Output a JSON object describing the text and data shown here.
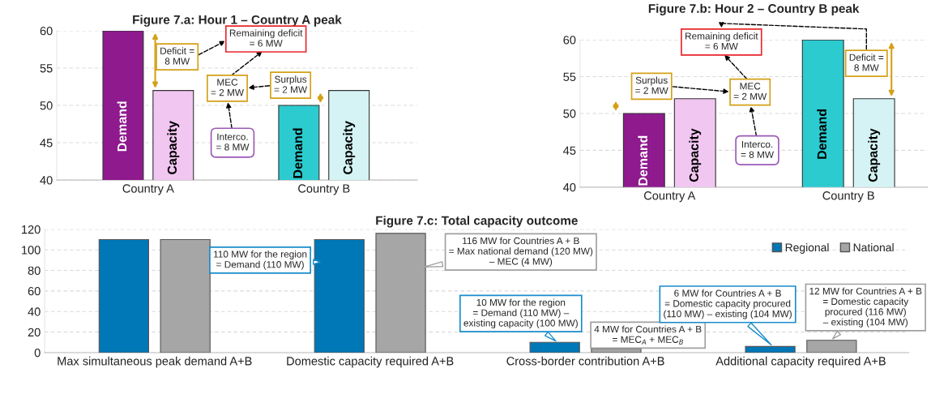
{
  "chart_data": [
    {
      "type": "bar",
      "title": "Figure 7.a: Hour 1 – Country A peak",
      "categories": [
        "Country A",
        "Country B"
      ],
      "series": [
        {
          "name": "Demand",
          "colors": [
            "#8e1a8e",
            "#2ccbd0"
          ],
          "values": [
            60,
            50
          ]
        },
        {
          "name": "Capacity",
          "colors": [
            "#f1c6f1",
            "#d5f3f4"
          ],
          "values": [
            52,
            52
          ]
        }
      ],
      "ylim": [
        40,
        60
      ],
      "yticks": [
        40,
        45,
        50,
        55,
        60
      ],
      "grid": "y",
      "legend": false,
      "annotations": [
        "Deficit =\n8 MW",
        "Remaining deficit\n= 6 MW",
        "MEC\n= 2 MW",
        "Surplus\n= 2 MW",
        "Interco.\n= 8 MW"
      ]
    },
    {
      "type": "bar",
      "title": "Figure 7.b: Hour 2 – Country B peak",
      "categories": [
        "Country A",
        "Country B"
      ],
      "series": [
        {
          "name": "Demand",
          "colors": [
            "#8e1a8e",
            "#2ccbd0"
          ],
          "values": [
            50,
            60
          ]
        },
        {
          "name": "Capacity",
          "colors": [
            "#f1c6f1",
            "#d5f3f4"
          ],
          "values": [
            52,
            52
          ]
        }
      ],
      "ylim": [
        40,
        60
      ],
      "yticks": [
        40,
        45,
        50,
        55,
        60
      ],
      "grid": "y",
      "legend": false,
      "annotations": [
        "Deficit =\n8 MW",
        "Remaining deficit\n= 6 MW",
        "MEC\n= 2 MW",
        "Surplus\n= 2 MW",
        "Interco.\n= 8 MW"
      ]
    },
    {
      "type": "bar",
      "title": "Figure 7.c: Total capacity outcome",
      "categories": [
        "Max simultaneous peak demand A+B",
        "Domestic capacity required A+B",
        "Cross-border contribution A+B",
        "Additional capacity required A+B"
      ],
      "series": [
        {
          "name": "Regional",
          "color": "#0077b6",
          "values": [
            110,
            110,
            10,
            6
          ]
        },
        {
          "name": "National",
          "color": "#a6a6a6",
          "values": [
            110,
            116,
            4,
            12
          ]
        }
      ],
      "ylim": [
        0,
        120
      ],
      "yticks": [
        0,
        20,
        40,
        60,
        80,
        100,
        120
      ],
      "grid": "y",
      "legend": "top right",
      "annotations": [
        "110 MW for the region\n= Demand (110 MW)",
        "116 MW for Countries A + B\n= Max national demand (120 MW)\n– MEC (4 MW)",
        "10 MW for the region\n= Demand (110 MW) –\nexisting capacity (100 MW)",
        "4 MW for Countries A + B\n= MEC$_{A}$ + MEC$_{B}$",
        "6 MW for Countries A + B\n= Domestic capacity procured\n(110 MW) – existing (104 MW)",
        "12 MW for Countries A + B\n= Domestic capacity\nprocured (116 MW)\n– existing (104 MW)"
      ]
    }
  ]
}
